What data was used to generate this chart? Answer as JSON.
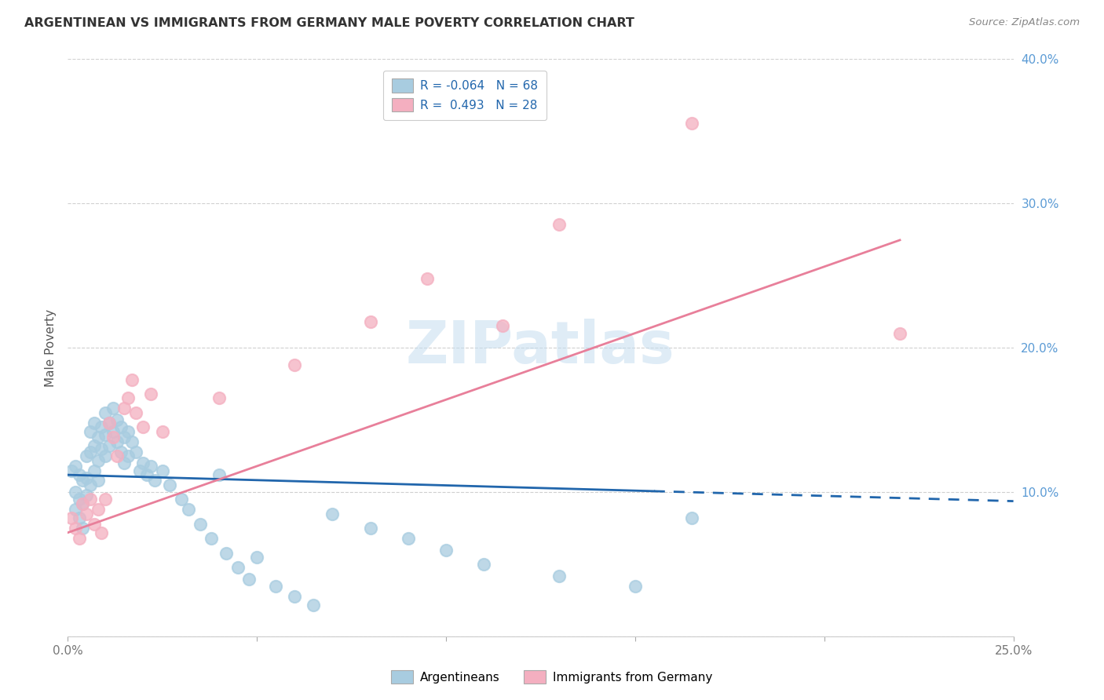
{
  "title": "ARGENTINEAN VS IMMIGRANTS FROM GERMANY MALE POVERTY CORRELATION CHART",
  "source": "Source: ZipAtlas.com",
  "ylabel": "Male Poverty",
  "x_min": 0.0,
  "x_max": 0.25,
  "y_min": 0.0,
  "y_max": 0.4,
  "argentinean_R": -0.064,
  "argentinean_N": 68,
  "germany_R": 0.493,
  "germany_N": 28,
  "blue_color": "#a8cce0",
  "pink_color": "#f4afc0",
  "blue_line_color": "#2166ac",
  "pink_line_color": "#e87f9a",
  "watermark": "ZIPatlas",
  "arg_x": [
    0.001,
    0.002,
    0.002,
    0.002,
    0.003,
    0.003,
    0.003,
    0.004,
    0.004,
    0.004,
    0.005,
    0.005,
    0.005,
    0.006,
    0.006,
    0.006,
    0.007,
    0.007,
    0.007,
    0.008,
    0.008,
    0.008,
    0.009,
    0.009,
    0.01,
    0.01,
    0.01,
    0.011,
    0.011,
    0.012,
    0.012,
    0.013,
    0.013,
    0.014,
    0.014,
    0.015,
    0.015,
    0.016,
    0.016,
    0.017,
    0.018,
    0.019,
    0.02,
    0.021,
    0.022,
    0.023,
    0.025,
    0.027,
    0.03,
    0.032,
    0.035,
    0.038,
    0.04,
    0.042,
    0.045,
    0.048,
    0.05,
    0.055,
    0.06,
    0.065,
    0.07,
    0.08,
    0.09,
    0.1,
    0.11,
    0.13,
    0.15,
    0.165
  ],
  "arg_y": [
    0.115,
    0.118,
    0.1,
    0.088,
    0.112,
    0.095,
    0.082,
    0.108,
    0.092,
    0.075,
    0.125,
    0.11,
    0.098,
    0.142,
    0.128,
    0.105,
    0.148,
    0.132,
    0.115,
    0.138,
    0.122,
    0.108,
    0.145,
    0.13,
    0.155,
    0.14,
    0.125,
    0.148,
    0.132,
    0.158,
    0.142,
    0.15,
    0.135,
    0.145,
    0.128,
    0.138,
    0.12,
    0.142,
    0.125,
    0.135,
    0.128,
    0.115,
    0.12,
    0.112,
    0.118,
    0.108,
    0.115,
    0.105,
    0.095,
    0.088,
    0.078,
    0.068,
    0.112,
    0.058,
    0.048,
    0.04,
    0.055,
    0.035,
    0.028,
    0.022,
    0.085,
    0.075,
    0.068,
    0.06,
    0.05,
    0.042,
    0.035,
    0.082
  ],
  "ger_x": [
    0.001,
    0.002,
    0.003,
    0.004,
    0.005,
    0.006,
    0.007,
    0.008,
    0.009,
    0.01,
    0.011,
    0.012,
    0.013,
    0.015,
    0.016,
    0.017,
    0.018,
    0.02,
    0.022,
    0.025,
    0.04,
    0.06,
    0.08,
    0.095,
    0.115,
    0.13,
    0.165,
    0.22
  ],
  "ger_y": [
    0.082,
    0.075,
    0.068,
    0.092,
    0.085,
    0.095,
    0.078,
    0.088,
    0.072,
    0.095,
    0.148,
    0.138,
    0.125,
    0.158,
    0.165,
    0.178,
    0.155,
    0.145,
    0.168,
    0.142,
    0.165,
    0.188,
    0.218,
    0.248,
    0.215,
    0.285,
    0.355,
    0.21
  ],
  "blue_line_x0": 0.0,
  "blue_line_y0": 0.112,
  "blue_line_x1": 0.165,
  "blue_line_y1": 0.1,
  "blue_line_solid_end": 0.155,
  "pink_line_x0": 0.0,
  "pink_line_y0": 0.072,
  "pink_line_x1": 0.25,
  "pink_line_y1": 0.302,
  "pink_line_solid_end": 0.22
}
